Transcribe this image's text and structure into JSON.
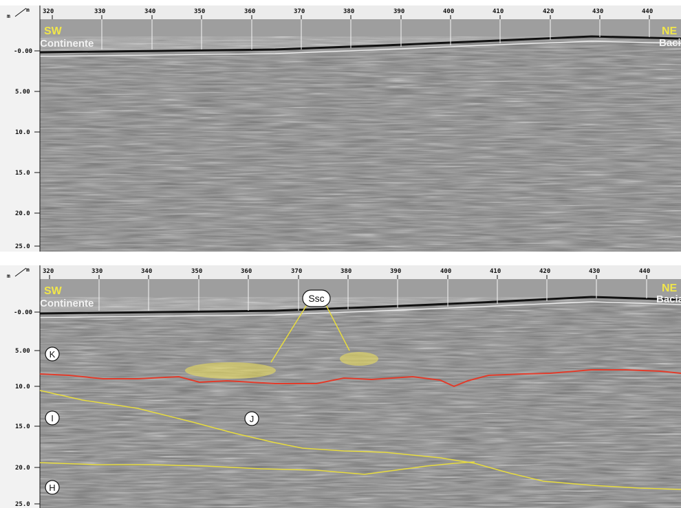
{
  "axis": {
    "unit_x": "m",
    "unit_y": "m",
    "distance_ticks": [
      "320",
      "330",
      "340",
      "350",
      "360",
      "370",
      "380",
      "390",
      "400",
      "410",
      "420",
      "430",
      "440"
    ],
    "depth_ticks": [
      "-0.00",
      "5.00",
      "10.0",
      "15.0",
      "20.0",
      "25.0"
    ]
  },
  "labels": {
    "sw": "SW",
    "ne": "NE",
    "left_unit": "Continente",
    "right_unit": "Bacia"
  },
  "interpretation": {
    "ssc": "Ssc",
    "k": "K",
    "i": "I",
    "j": "J",
    "h": "H"
  },
  "colors": {
    "red_horizon": "#e23b2a",
    "yellow_horizon": "#e8dc3e",
    "label_yellow": "#f1e64a"
  }
}
